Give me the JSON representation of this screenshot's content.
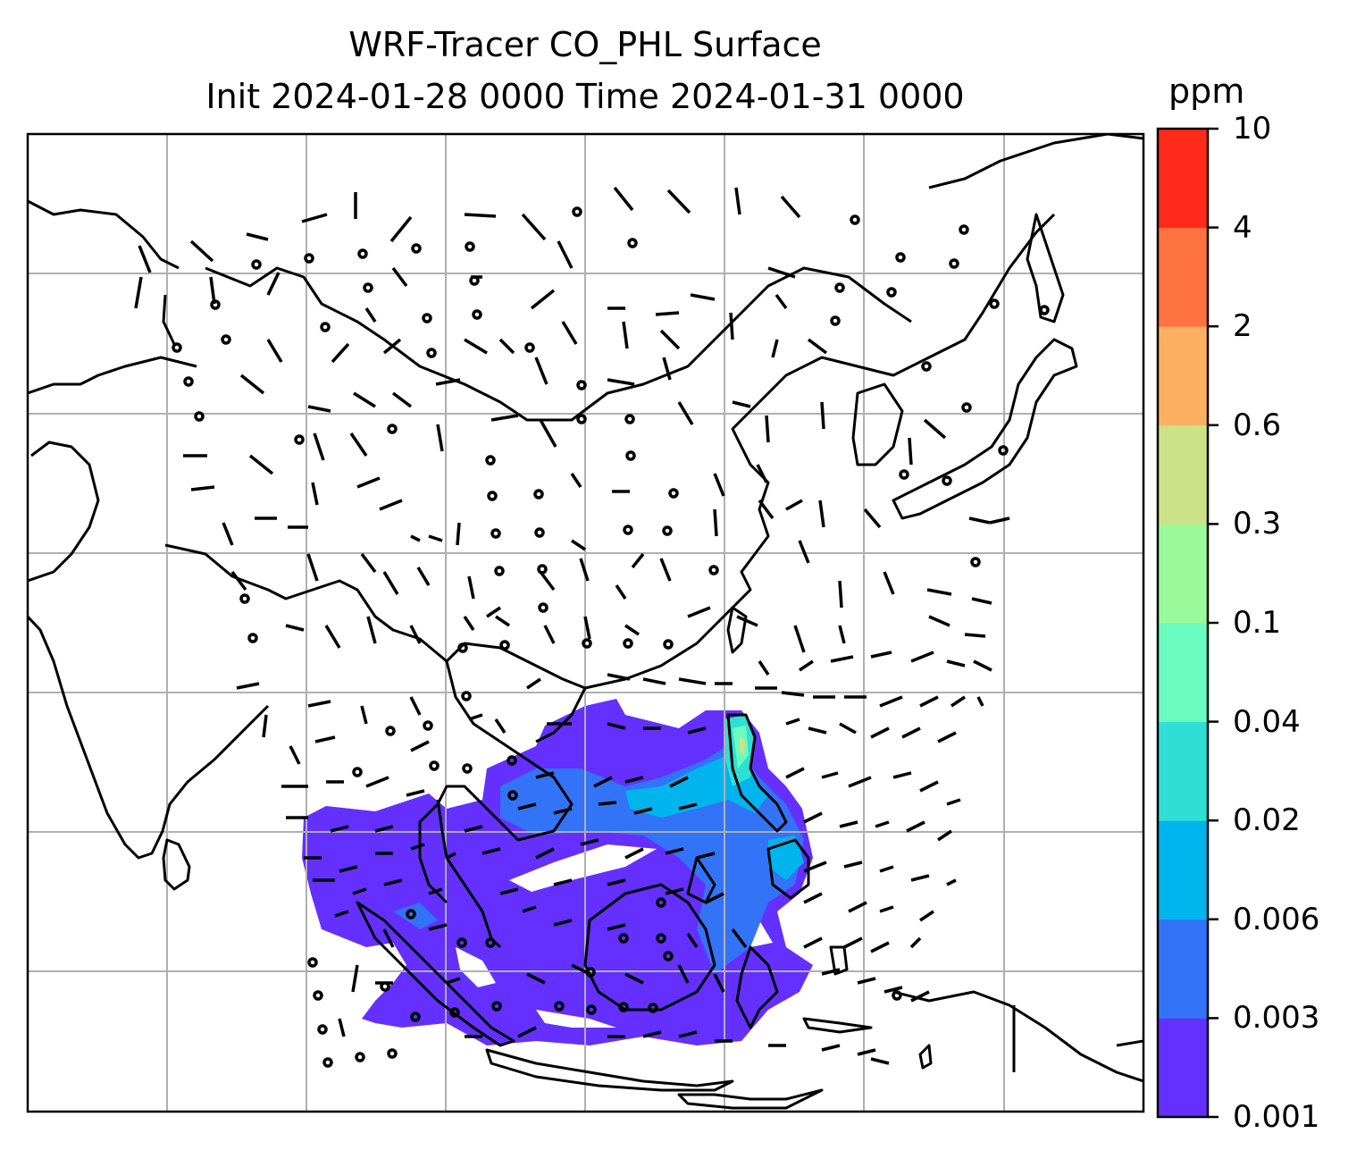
{
  "title": {
    "line1": "WRF-Tracer CO_PHL Surface",
    "line2": "Init 2024-01-28 0000 Time 2024-01-31 0000"
  },
  "colorbar": {
    "unit": "ppm",
    "levels": [
      "0.001",
      "0.003",
      "0.006",
      "0.02",
      "0.04",
      "0.1",
      "0.3",
      "0.6",
      "2",
      "4",
      "10"
    ],
    "colors": [
      "#6330ff",
      "#3273f7",
      "#00b4ee",
      "#2fdfd5",
      "#69fbbf",
      "#9af99a",
      "#cde287",
      "#fdb062",
      "#ff7340",
      "#ff2a19"
    ]
  },
  "map": {
    "gridlines": "on",
    "wind_barbs": "on",
    "coastlines": "on",
    "plume_color": "#6330ff"
  }
}
